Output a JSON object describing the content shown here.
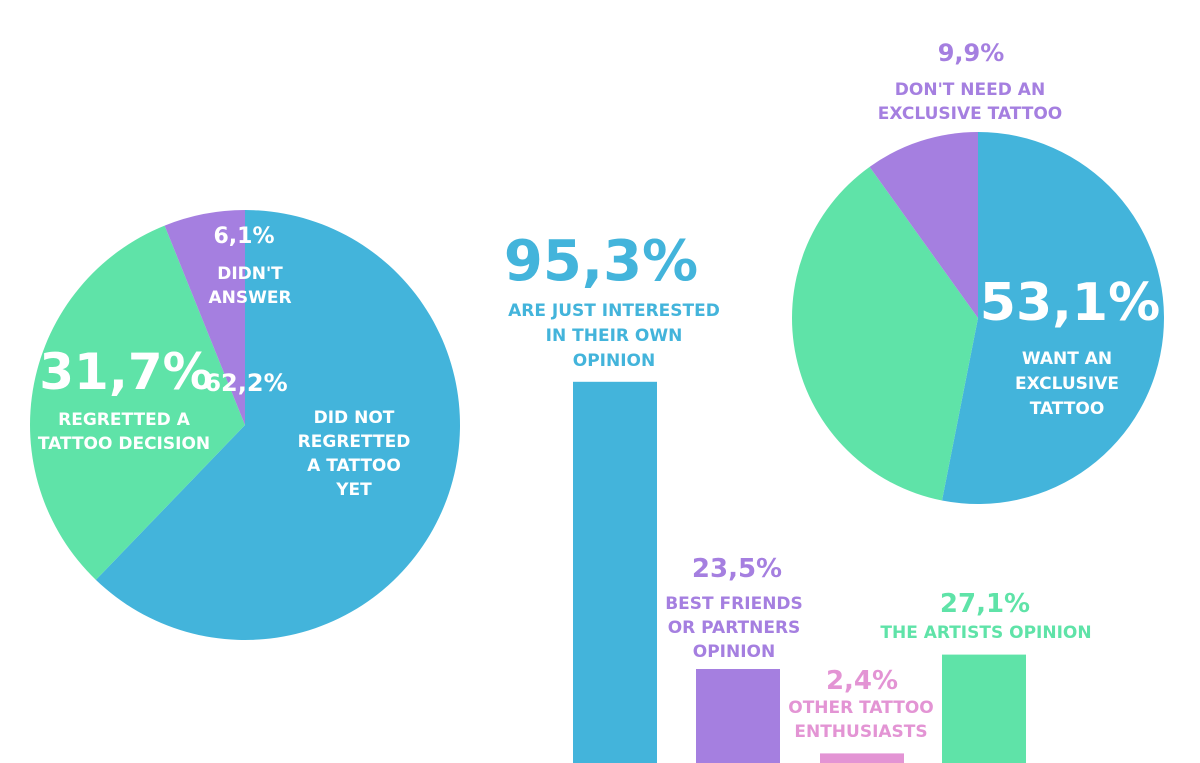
{
  "colors": {
    "blue": "#43b4db",
    "green": "#5fe3a8",
    "purple": "#a57fe0",
    "pink": "#e394d4",
    "white": "#ffffff"
  },
  "chart_data": [
    {
      "type": "pie",
      "slices": [
        {
          "value": 62.2,
          "value_label": "62,2%",
          "label": [
            "DID NOT",
            "REGRETTED",
            "A TATTOO",
            "YET"
          ],
          "color": "#43b4db"
        },
        {
          "value": 31.7,
          "value_label": "31,7%",
          "label": [
            "REGRETTED A",
            "TATTOO DECISION"
          ],
          "color": "#5fe3a8"
        },
        {
          "value": 6.1,
          "value_label": "6,1%",
          "label": [
            "DIDN'T",
            "ANSWER"
          ],
          "color": "#a57fe0"
        }
      ]
    },
    {
      "type": "bar",
      "ylim": [
        0,
        100
      ],
      "bars": [
        {
          "value": 95.3,
          "value_label": "95,3%",
          "label": [
            "ARE JUST INTERESTED",
            "IN THEIR OWN",
            "OPINION"
          ],
          "color": "#43b4db"
        },
        {
          "value": 23.5,
          "value_label": "23,5%",
          "label": [
            "BEST FRIENDS",
            "OR PARTNERS",
            "OPINION"
          ],
          "color": "#a57fe0"
        },
        {
          "value": 2.4,
          "value_label": "2,4%",
          "label": [
            "OTHER TATTOO",
            "ENTHUSIASTS"
          ],
          "color": "#e394d4"
        },
        {
          "value": 27.1,
          "value_label": "27,1%",
          "label": [
            "THE ARTISTS OPINION"
          ],
          "color": "#5fe3a8"
        }
      ]
    },
    {
      "type": "pie",
      "slices": [
        {
          "value": 53.1,
          "value_label": "53,1%",
          "label": [
            "WANT AN",
            "EXCLUSIVE",
            "TATTOO"
          ],
          "color": "#43b4db"
        },
        {
          "value": 37.0,
          "value_label": "",
          "label": [],
          "color": "#5fe3a8"
        },
        {
          "value": 9.9,
          "value_label": "9,9%",
          "label": [
            "DON'T NEED AN",
            "EXCLUSIVE TATTOO"
          ],
          "color": "#a57fe0"
        }
      ]
    }
  ]
}
